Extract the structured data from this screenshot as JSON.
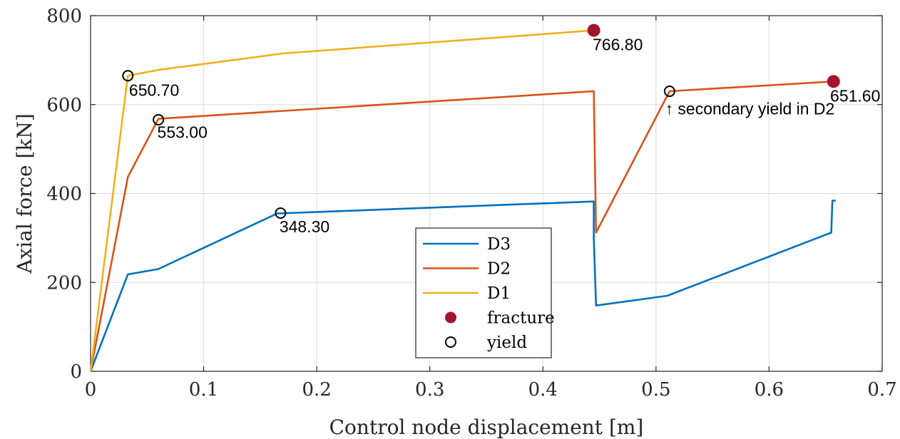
{
  "chart_data": {
    "type": "line",
    "xlabel": "Control node displacement [m]",
    "ylabel": "Axial force [kN]",
    "xlim": [
      0,
      0.7
    ],
    "ylim": [
      0,
      800
    ],
    "xticks": [
      "0",
      "0.1",
      "0.2",
      "0.3",
      "0.4",
      "0.5",
      "0.6",
      "0.7"
    ],
    "yticks": [
      "0",
      "200",
      "400",
      "600",
      "800"
    ],
    "grid": true,
    "legend_position": "bottom-center",
    "series": [
      {
        "name": "D3",
        "color": "#0072BD",
        "x": [
          0,
          0.033,
          0.06,
          0.165,
          0.445,
          0.445,
          0.447,
          0.51,
          0.655,
          0.656,
          0.659
        ],
        "y": [
          0,
          218,
          230,
          355,
          382,
          300,
          148,
          170,
          312,
          384,
          384
        ]
      },
      {
        "name": "D2",
        "color": "#D95319",
        "x": [
          0,
          0.033,
          0.06,
          0.445,
          0.445,
          0.447,
          0.512,
          0.657
        ],
        "y": [
          0,
          437,
          568,
          630,
          630,
          312,
          630,
          652
        ]
      },
      {
        "name": "D1",
        "color": "#EDB120",
        "x": [
          0,
          0.033,
          0.06,
          0.17,
          0.445
        ],
        "y": [
          0,
          665,
          678,
          715,
          767
        ]
      }
    ],
    "markers": {
      "fracture": {
        "name": "fracture",
        "color": "#A2142F",
        "points": [
          {
            "x": 0.445,
            "y": 767
          },
          {
            "x": 0.657,
            "y": 652
          }
        ]
      },
      "yield": {
        "name": "yield",
        "points": [
          {
            "x": 0.033,
            "y": 665
          },
          {
            "x": 0.06,
            "y": 566
          },
          {
            "x": 0.168,
            "y": 356
          },
          {
            "x": 0.512,
            "y": 630
          }
        ]
      }
    },
    "annotations": [
      {
        "text": "650.70",
        "x": 0.034,
        "y": 620
      },
      {
        "text": "553.00",
        "x": 0.059,
        "y": 525
      },
      {
        "text": "348.30",
        "x": 0.167,
        "y": 313
      },
      {
        "text": "766.80",
        "x": 0.444,
        "y": 722
      },
      {
        "text": "651.60",
        "x": 0.654,
        "y": 607
      },
      {
        "text": "↑ secondary yield in D2",
        "x": 0.508,
        "y": 578
      }
    ]
  }
}
